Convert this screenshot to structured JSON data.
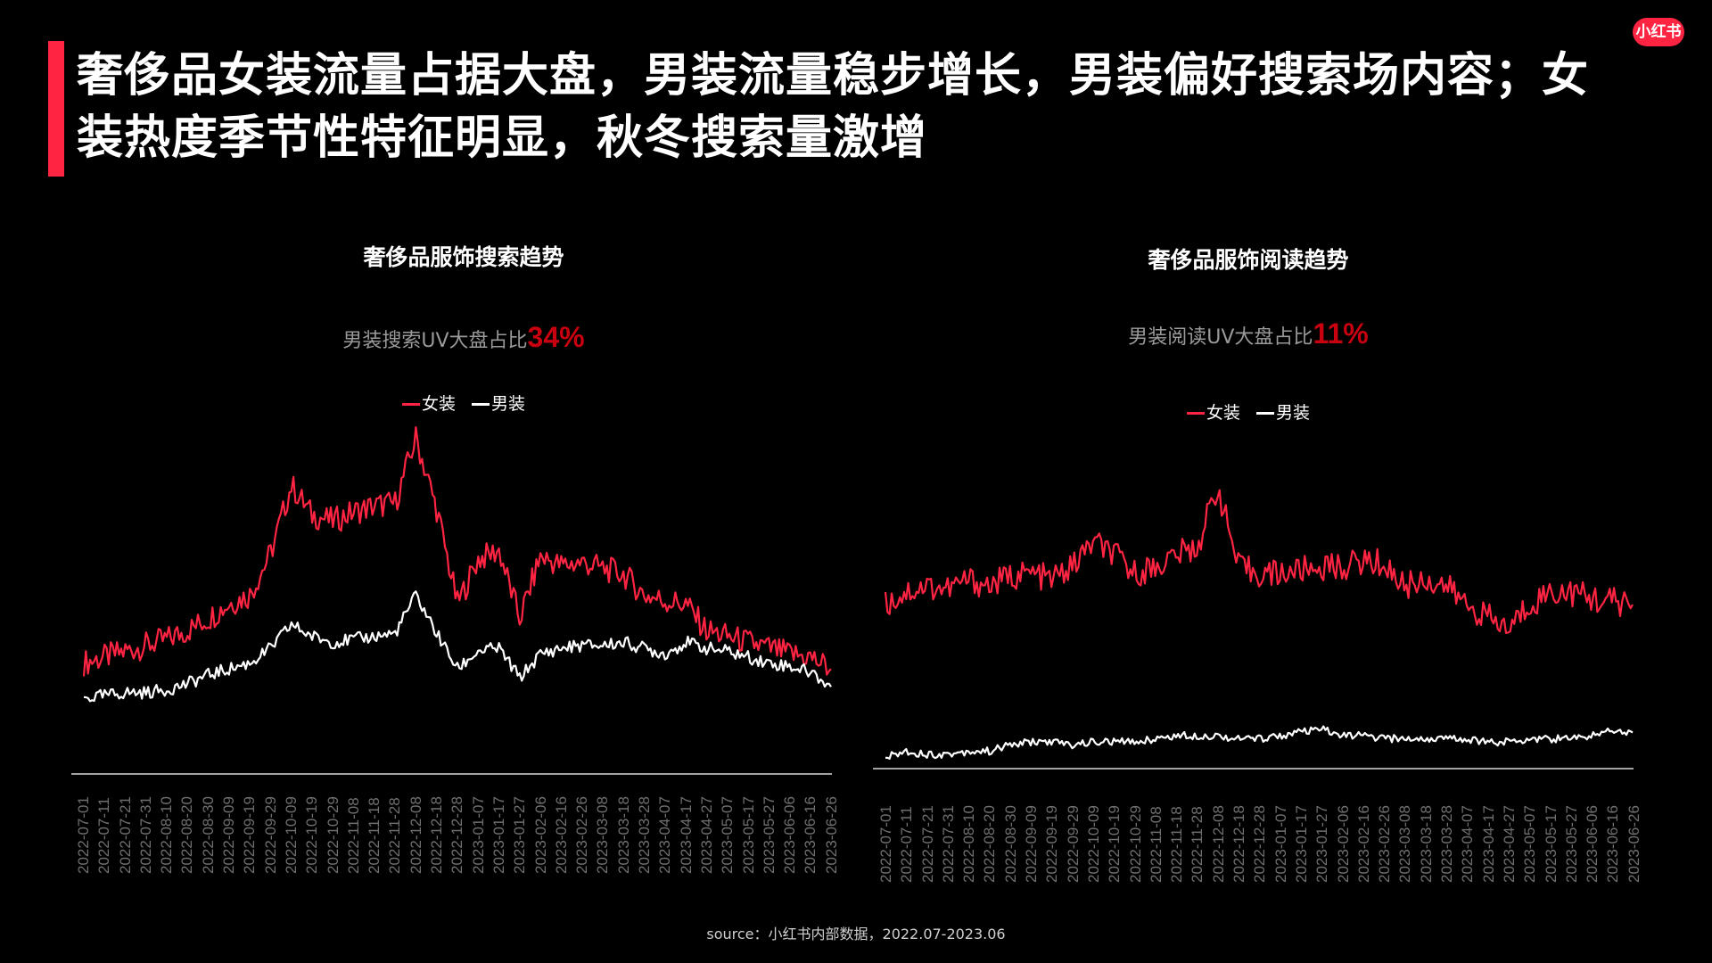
{
  "header": {
    "headline": "奢侈品女装流量占据大盘，男装流量稳步增长，男装偏好搜索场内容；女装热度季节性特征明显，秋冬搜索量激增",
    "logo_text": "小红书"
  },
  "colors": {
    "accent": "#ff2442",
    "women_line": "#ff2442",
    "men_line": "#ffffff",
    "stat_highlight": "#c8000f",
    "background": "#000000"
  },
  "left_panel": {
    "title": "奢侈品服饰搜索趋势",
    "stat_label": "男装搜索UV大盘占比",
    "stat_value": "34%",
    "legend": [
      {
        "label": "女装",
        "color": "#ff2442"
      },
      {
        "label": "男装",
        "color": "#ffffff"
      }
    ]
  },
  "right_panel": {
    "title": "奢侈品服饰阅读趋势",
    "stat_label": "男装阅读UV大盘占比",
    "stat_value": "11%",
    "legend": [
      {
        "label": "女装",
        "color": "#ff2442"
      },
      {
        "label": "男装",
        "color": "#ffffff"
      }
    ]
  },
  "footer": {
    "source": "source：小红书内部数据，2022.07-2023.06"
  },
  "chart_data": [
    {
      "type": "line",
      "title": "奢侈品服饰搜索趋势",
      "subtitle": "男装搜索UV大盘占比34%",
      "xlabel": "",
      "ylabel": "",
      "grid": false,
      "legend_position": "top",
      "categories": [
        "2022-07-01",
        "2022-07-11",
        "2022-07-21",
        "2022-07-31",
        "2022-08-10",
        "2022-08-20",
        "2022-08-30",
        "2022-09-09",
        "2022-09-19",
        "2022-09-29",
        "2022-10-09",
        "2022-10-19",
        "2022-10-29",
        "2022-11-08",
        "2022-11-18",
        "2022-11-28",
        "2022-12-08",
        "2022-12-18",
        "2022-12-28",
        "2023-01-07",
        "2023-01-17",
        "2023-01-27",
        "2023-02-06",
        "2023-02-16",
        "2023-02-26",
        "2023-03-08",
        "2023-03-18",
        "2023-03-28",
        "2023-04-07",
        "2023-04-17",
        "2023-04-27",
        "2023-05-07",
        "2023-05-17",
        "2023-05-27",
        "2023-06-06",
        "2023-06-16",
        "2023-06-26"
      ],
      "series": [
        {
          "name": "女装",
          "color": "#ff2442",
          "values": [
            20,
            22,
            24,
            26,
            28,
            31,
            35,
            40,
            43,
            57,
            80,
            70,
            68,
            71,
            73,
            74,
            96,
            72,
            40,
            55,
            58,
            35,
            56,
            53,
            54,
            52,
            50,
            43,
            41,
            40,
            31,
            29,
            27,
            25,
            23,
            22,
            18
          ]
        },
        {
          "name": "男装",
          "color": "#ffffff",
          "values": [
            8,
            9,
            10,
            10,
            11,
            13,
            16,
            18,
            20,
            25,
            33,
            29,
            27,
            28,
            29,
            30,
            43,
            30,
            18,
            24,
            25,
            15,
            23,
            25,
            26,
            26,
            27,
            25,
            23,
            27,
            25,
            24,
            22,
            20,
            19,
            17,
            12
          ]
        }
      ],
      "ylim": [
        0,
        100
      ]
    },
    {
      "type": "line",
      "title": "奢侈品服饰阅读趋势",
      "subtitle": "男装阅读UV大盘占比11%",
      "xlabel": "",
      "ylabel": "",
      "grid": false,
      "legend_position": "top",
      "categories": [
        "2022-07-01",
        "2022-07-11",
        "2022-07-21",
        "2022-07-31",
        "2022-08-10",
        "2022-08-20",
        "2022-08-30",
        "2022-09-09",
        "2022-09-19",
        "2022-09-29",
        "2022-10-09",
        "2022-10-19",
        "2022-10-29",
        "2022-11-08",
        "2022-11-18",
        "2022-11-28",
        "2022-12-08",
        "2022-12-18",
        "2022-12-28",
        "2023-01-07",
        "2023-01-17",
        "2023-01-27",
        "2023-02-06",
        "2023-02-16",
        "2023-02-26",
        "2023-03-08",
        "2023-03-18",
        "2023-03-28",
        "2023-04-07",
        "2023-04-17",
        "2023-04-27",
        "2023-05-07",
        "2023-05-17",
        "2023-05-27",
        "2023-06-06",
        "2023-06-16",
        "2023-06-26"
      ],
      "series": [
        {
          "name": "女装",
          "color": "#ff2442",
          "values": [
            52,
            56,
            58,
            57,
            60,
            58,
            61,
            62,
            60,
            64,
            72,
            68,
            62,
            64,
            68,
            70,
            90,
            64,
            62,
            62,
            63,
            64,
            64,
            66,
            65,
            58,
            60,
            58,
            52,
            48,
            44,
            52,
            56,
            56,
            54,
            53,
            52
          ]
        },
        {
          "name": "男装",
          "color": "#ffffff",
          "values": [
            3,
            5,
            4,
            4,
            5,
            5,
            7,
            8,
            8,
            7,
            8,
            8,
            8,
            9,
            10,
            10,
            10,
            9,
            9,
            10,
            11,
            12,
            10,
            10,
            9,
            9,
            9,
            9,
            9,
            8,
            8,
            9,
            9,
            9,
            10,
            12,
            11
          ]
        }
      ],
      "ylim": [
        0,
        100
      ]
    }
  ]
}
